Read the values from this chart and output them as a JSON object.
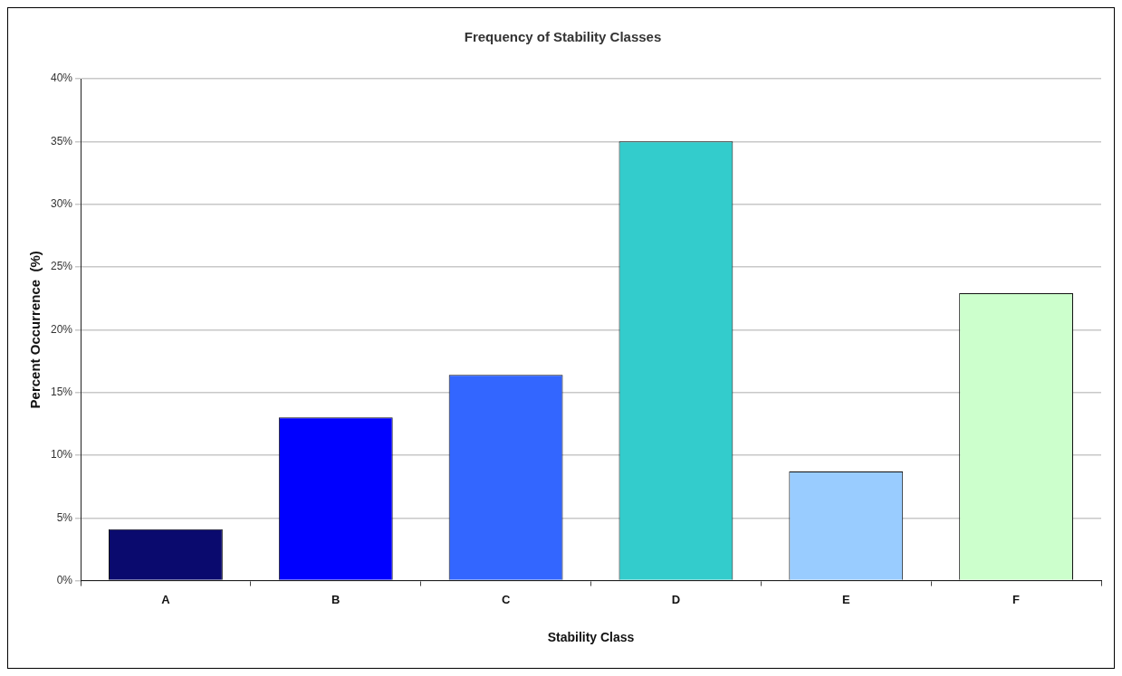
{
  "chart_data": {
    "type": "bar",
    "title": "Frequency of Stability Classes",
    "xlabel": "Stability Class",
    "ylabel": "Percent Occurrence  (%)",
    "categories": [
      "A",
      "B",
      "C",
      "D",
      "E",
      "F"
    ],
    "values": [
      4.1,
      13.0,
      16.4,
      35.0,
      8.7,
      22.9
    ],
    "colors": [
      "#0a0a6e",
      "#0000ff",
      "#3366ff",
      "#33cccc",
      "#99ccff",
      "#ccffcc"
    ],
    "ylim": [
      0,
      40
    ],
    "yticks": [
      {
        "value": 0,
        "label": "0%"
      },
      {
        "value": 5,
        "label": "5%"
      },
      {
        "value": 10,
        "label": "10%"
      },
      {
        "value": 15,
        "label": "15%"
      },
      {
        "value": 20,
        "label": "20%"
      },
      {
        "value": 25,
        "label": "25%"
      },
      {
        "value": 30,
        "label": "30%"
      },
      {
        "value": 35,
        "label": "35%"
      },
      {
        "value": 40,
        "label": "40%"
      }
    ],
    "grid": "y",
    "legend": false
  }
}
